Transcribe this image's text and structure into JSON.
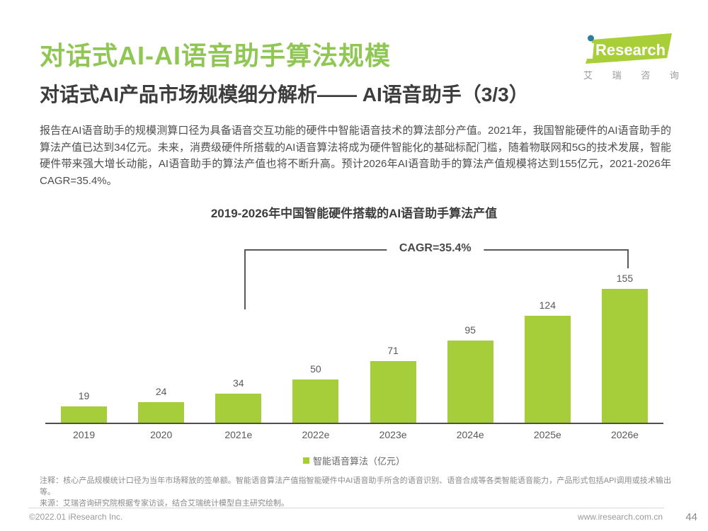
{
  "header": {
    "title": "对话式AI-AI语音助手算法规模",
    "subtitle": "对话式AI产品市场规模细分解析—— AI语音助手（3/3）",
    "logo": {
      "brand_i": "i",
      "brand_rest": "Research",
      "chinese": "艾 瑞 咨 询"
    }
  },
  "body": {
    "paragraph": "报告在AI语音助手的规模测算口径为具备语音交互功能的硬件中智能语音技术的算法部分产值。2021年，我国智能硬件的AI语音助手的算法产值已达到34亿元。未来，消费级硬件所搭载的AI语音算法将成为硬件智能化的基础标配门槛，随着物联网和5G的技术发展，智能硬件带来强大增长动能，AI语音助手的算法产值也将不断升高。预计2026年AI语音助手的算法产值规模将达到155亿元，2021-2026年CAGR=35.4%。"
  },
  "chart_data": {
    "type": "bar",
    "title": "2019-2026年中国智能硬件搭载的AI语音助手算法产值",
    "categories": [
      "2019",
      "2020",
      "2021e",
      "2022e",
      "2023e",
      "2024e",
      "2025e",
      "2026e"
    ],
    "values": [
      19,
      24,
      34,
      50,
      71,
      95,
      124,
      155
    ],
    "series_name": "智能语音算法",
    "unit": "亿元",
    "legend": "智能语音算法（亿元）",
    "annotation": "CAGR=35.4%",
    "annotation_span": [
      "2021e",
      "2026e"
    ],
    "ylim": [
      0,
      160
    ],
    "grid": false,
    "legend_position": "bottom",
    "bar_color": "#a6ce3b"
  },
  "footnotes": {
    "note": "注释：核心产品规模统计口径为当年市场释放的签单额。智能语音算法产值指智能硬件中AI语音助手所含的语音识别、语音合成等各类智能语音能力，产品形式包括API调用或技术输出等。",
    "source": "来源：艾瑞咨询研究院根据专家访谈，结合艾瑞统计模型自主研究绘制。"
  },
  "footer": {
    "copyright": "©2022.01 iResearch Inc.",
    "website": "www.iresearch.com.cn",
    "page_number": "44"
  },
  "colors": {
    "accent_green": "#90c653",
    "bar_green": "#a6ce3b",
    "logo_green": "#a8cf38",
    "logo_dot_teal": "#2a7f9e",
    "text_dark": "#3d3d3d",
    "text_gray": "#595959",
    "text_light": "#8a8a8a"
  }
}
